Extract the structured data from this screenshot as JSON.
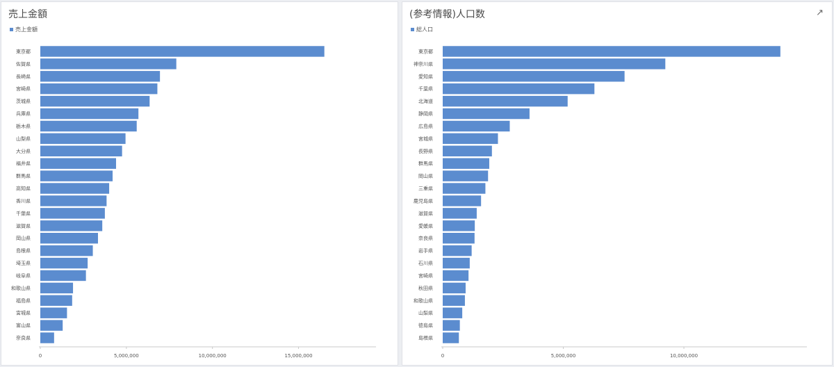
{
  "colors": {
    "bar": "#5b8ccf",
    "axis": "#c9c9c9",
    "text": "#555555"
  },
  "chart_data": [
    {
      "type": "bar",
      "orientation": "horizontal",
      "title": "売上金額",
      "legend": [
        "売上金額"
      ],
      "legend_position": "top-left",
      "grid": false,
      "xlim": [
        0,
        19500000
      ],
      "xticks": [
        0,
        5000000,
        10000000,
        15000000
      ],
      "xtick_labels": [
        "0",
        "5,000,000",
        "10,000,000",
        "15,000,000"
      ],
      "categories": [
        "東京都",
        "佐賀県",
        "長崎県",
        "宮崎県",
        "茨城県",
        "兵庫県",
        "栃木県",
        "山梨県",
        "大分県",
        "福井県",
        "群馬県",
        "高知県",
        "香川県",
        "千葉県",
        "滋賀県",
        "岡山県",
        "島根県",
        "埼玉県",
        "岐阜県",
        "和歌山県",
        "福島県",
        "宮城県",
        "富山県",
        "奈良県"
      ],
      "series": [
        {
          "name": "売上金額",
          "values": [
            16500000,
            7900000,
            6950000,
            6800000,
            6350000,
            5700000,
            5600000,
            4950000,
            4750000,
            4400000,
            4200000,
            4000000,
            3850000,
            3750000,
            3600000,
            3350000,
            3050000,
            2750000,
            2650000,
            1900000,
            1850000,
            1550000,
            1300000,
            800000
          ]
        }
      ]
    },
    {
      "type": "bar",
      "orientation": "horizontal",
      "title": "(参考情報)人口数",
      "legend": [
        "総人口"
      ],
      "legend_position": "top-left",
      "grid": false,
      "xlim": [
        0,
        15100000
      ],
      "xticks": [
        0,
        5000000,
        10000000
      ],
      "xtick_labels": [
        "0",
        "5,000,000",
        "10,000,000"
      ],
      "categories": [
        "東京都",
        "神奈川県",
        "愛知県",
        "千葉県",
        "北海道",
        "静岡県",
        "広島県",
        "宮城県",
        "長野県",
        "群馬県",
        "岡山県",
        "三重県",
        "鹿児島県",
        "滋賀県",
        "愛媛県",
        "奈良県",
        "岩手県",
        "石川県",
        "宮崎県",
        "秋田県",
        "和歌山県",
        "山梨県",
        "徳島県",
        "島根県"
      ],
      "series": [
        {
          "name": "総人口",
          "values": [
            14000000,
            9230000,
            7540000,
            6290000,
            5180000,
            3600000,
            2780000,
            2290000,
            2040000,
            1930000,
            1880000,
            1770000,
            1590000,
            1410000,
            1330000,
            1320000,
            1200000,
            1120000,
            1070000,
            950000,
            920000,
            810000,
            710000,
            670000
          ]
        }
      ]
    }
  ]
}
